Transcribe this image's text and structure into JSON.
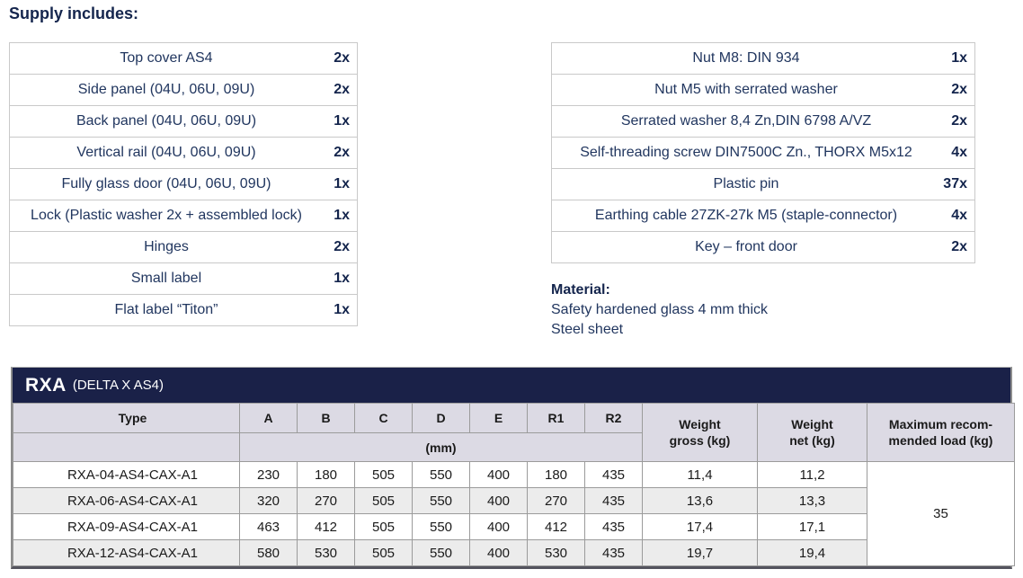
{
  "page": {
    "heading": "Supply includes:"
  },
  "supply_left": {
    "items": [
      {
        "label": "Top cover AS4",
        "qty": "2x"
      },
      {
        "label": "Side panel (04U, 06U, 09U)",
        "qty": "2x"
      },
      {
        "label": "Back panel (04U, 06U, 09U)",
        "qty": "1x"
      },
      {
        "label": "Vertical rail (04U, 06U, 09U)",
        "qty": "2x"
      },
      {
        "label": "Fully glass door (04U, 06U, 09U)",
        "qty": "1x"
      },
      {
        "label": "Lock (Plastic washer 2x + assembled lock)",
        "qty": "1x"
      },
      {
        "label": "Hinges",
        "qty": "2x"
      },
      {
        "label": "Small label",
        "qty": "1x"
      },
      {
        "label": "Flat label “Titon”",
        "qty": "1x"
      }
    ]
  },
  "supply_right": {
    "items": [
      {
        "label": "Nut M8: DIN 934",
        "qty": "1x"
      },
      {
        "label": "Nut M5 with serrated washer",
        "qty": "2x"
      },
      {
        "label": "Serrated washer 8,4 Zn,DIN 6798 A/VZ",
        "qty": "2x"
      },
      {
        "label": "Self-threading screw DIN7500C Zn., THORX M5x12",
        "qty": "4x"
      },
      {
        "label": "Plastic pin",
        "qty": "37x"
      },
      {
        "label": "Earthing cable 27ZK-27k M5 (staple-connector)",
        "qty": "4x"
      },
      {
        "label": "Key – front door",
        "qty": "2x"
      }
    ]
  },
  "material": {
    "heading": "Material:",
    "line1": "Safety hardened glass 4 mm thick",
    "line2": "Steel sheet"
  },
  "spec_table": {
    "title": "RXA",
    "subtitle": "(DELTA X AS4)",
    "columns": [
      "Type",
      "A",
      "B",
      "C",
      "D",
      "E",
      "R1",
      "R2"
    ],
    "unit_label": "(mm)",
    "weight_gross_header": "Weight\ngross (kg)",
    "weight_net_header": "Weight\nnet (kg)",
    "max_load_header": "Maximum recom-\nmended load (kg)",
    "rows": [
      {
        "type": "RXA-04-AS4-CAX-A1",
        "values": [
          "230",
          "180",
          "505",
          "550",
          "400",
          "180",
          "435",
          "11,4",
          "11,2"
        ]
      },
      {
        "type": "RXA-06-AS4-CAX-A1",
        "values": [
          "320",
          "270",
          "505",
          "550",
          "400",
          "270",
          "435",
          "13,6",
          "13,3"
        ]
      },
      {
        "type": "RXA-09-AS4-CAX-A1",
        "values": [
          "463",
          "412",
          "505",
          "550",
          "400",
          "412",
          "435",
          "17,4",
          "17,1"
        ]
      },
      {
        "type": "RXA-12-AS4-CAX-A1",
        "values": [
          "580",
          "530",
          "505",
          "550",
          "400",
          "530",
          "435",
          "19,7",
          "19,4"
        ]
      }
    ],
    "max_load_value": "35",
    "colors": {
      "titlebar_navy": "#1a2148",
      "header_bg": "#dcdae4",
      "row_alt_bg": "#ececec",
      "body_text_navy": "#21365f"
    }
  }
}
